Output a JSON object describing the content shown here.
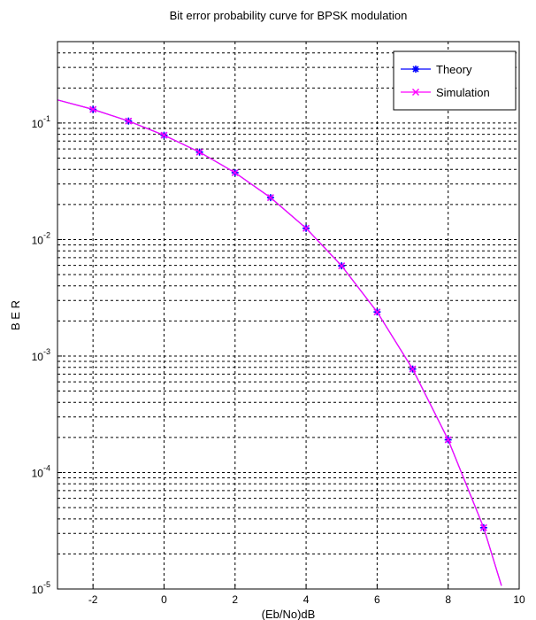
{
  "chart_data": {
    "type": "line",
    "title": "Bit error probability curve for BPSK modulation",
    "xlabel": "(Eb/No)dB",
    "ylabel": "B E R",
    "xlim": [
      -3,
      10
    ],
    "ylim": [
      1e-05,
      0.5
    ],
    "y_scale": "log",
    "grid": true,
    "legend_position": "top-right",
    "x_ticks": [
      -2,
      0,
      2,
      4,
      6,
      8,
      10
    ],
    "y_ticks": [
      {
        "value": 0.1,
        "base": "10",
        "exp": "-1"
      },
      {
        "value": 0.01,
        "base": "10",
        "exp": "-2"
      },
      {
        "value": 0.001,
        "base": "10",
        "exp": "-3"
      },
      {
        "value": 0.0001,
        "base": "10",
        "exp": "-4"
      },
      {
        "value": 1e-05,
        "base": "10",
        "exp": "-5"
      }
    ],
    "series": [
      {
        "name": "Theory",
        "color": "#0000ff",
        "marker": "star",
        "x": [
          -3,
          -2,
          -1,
          0,
          1,
          2,
          3,
          4,
          5,
          6,
          7,
          8,
          9,
          9.5
        ],
        "y": [
          0.158,
          0.131,
          0.104,
          0.0786,
          0.0563,
          0.0375,
          0.0229,
          0.0125,
          0.00595,
          0.00239,
          0.000773,
          0.000191,
          3.36e-05,
          1.07e-05
        ]
      },
      {
        "name": "Simulation",
        "color": "#ff00ff",
        "marker": "x",
        "x": [
          -3,
          -2,
          -1,
          0,
          1,
          2,
          3,
          4,
          5,
          6,
          7,
          8,
          9,
          9.5
        ],
        "y": [
          0.158,
          0.131,
          0.104,
          0.0786,
          0.0563,
          0.0375,
          0.0229,
          0.0125,
          0.00595,
          0.00239,
          0.000773,
          0.000191,
          3.36e-05,
          1.07e-05
        ]
      }
    ]
  }
}
